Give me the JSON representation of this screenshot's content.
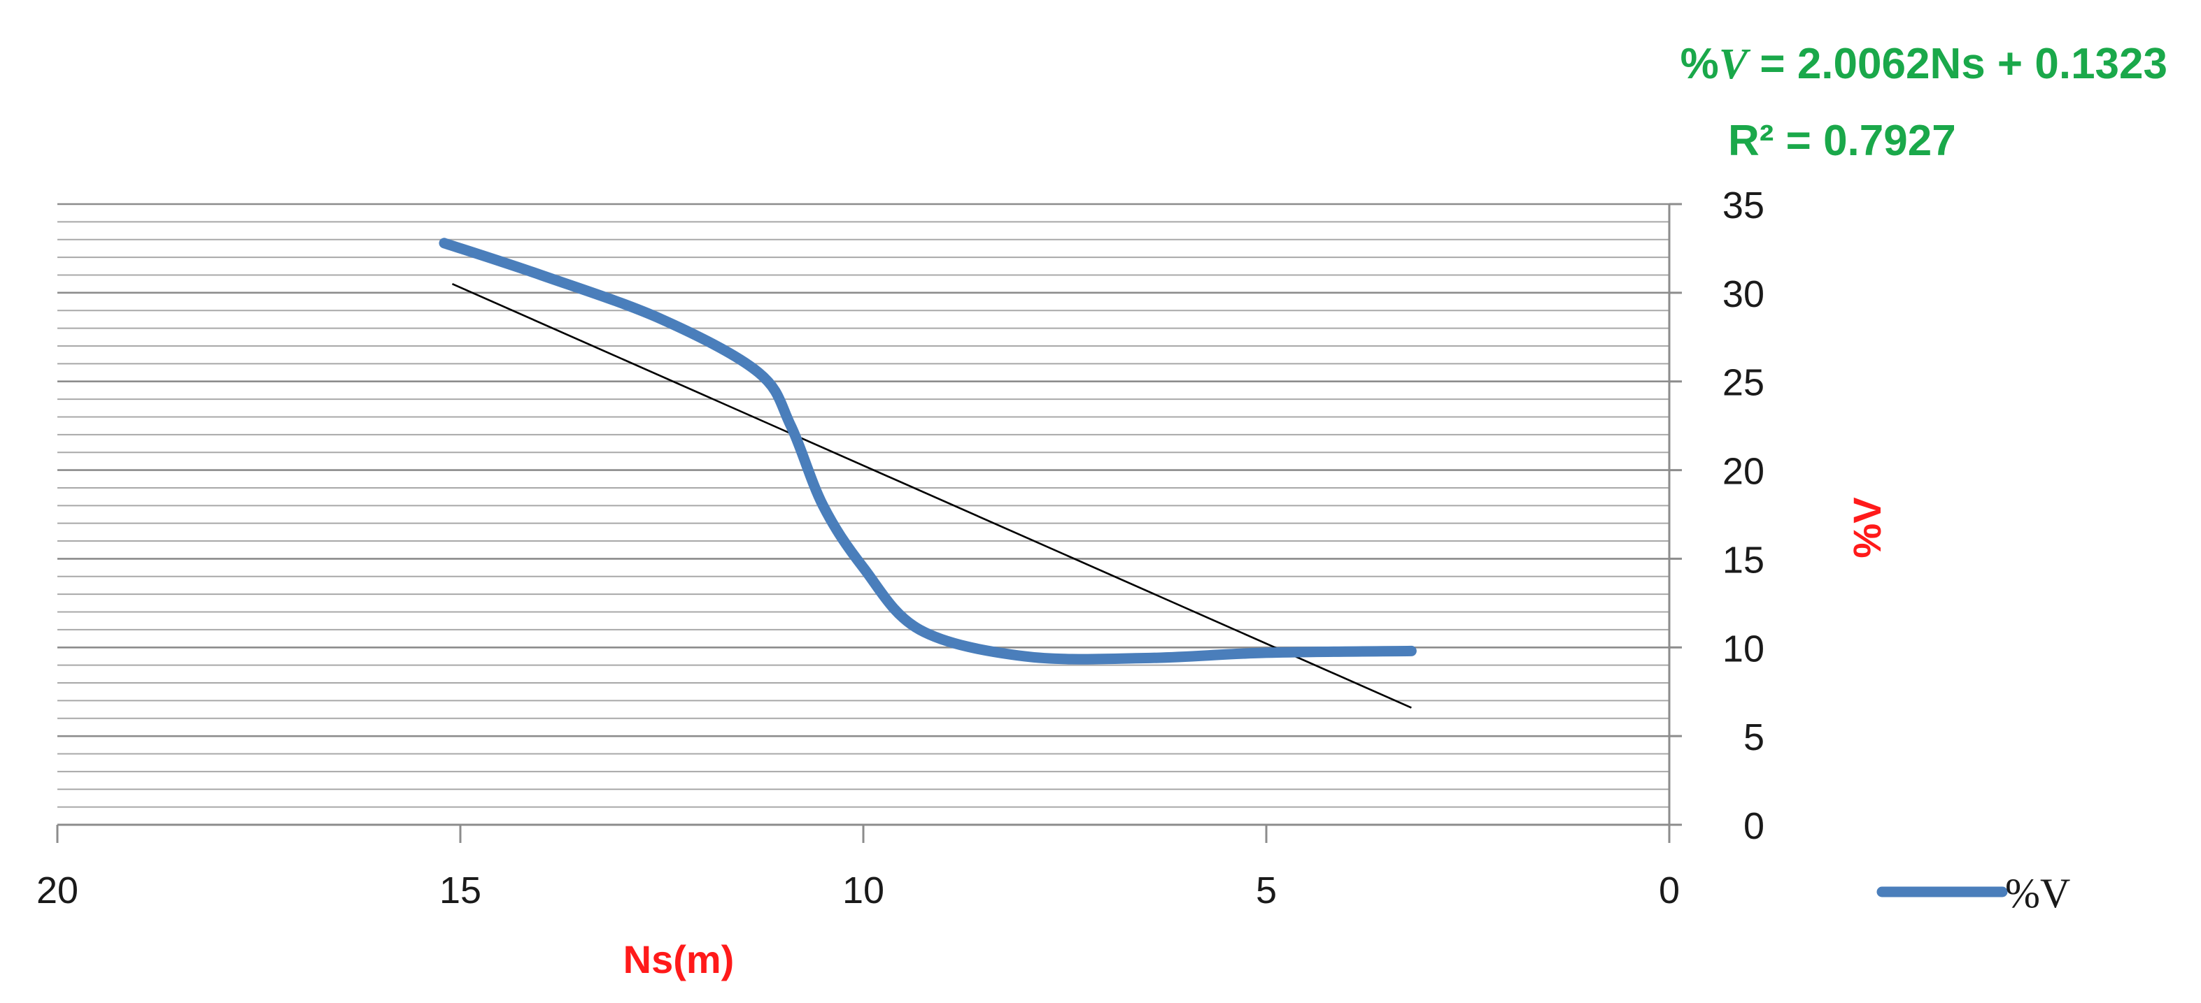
{
  "chart_data": {
    "type": "line",
    "title": "",
    "xlabel": "Ns(m)",
    "ylabel": "%V",
    "xlim": [
      20,
      0
    ],
    "ylim": [
      0,
      35
    ],
    "x_axis_reversed": true,
    "y_axis_position": "right",
    "x_ticks": [
      20,
      15,
      10,
      5,
      0
    ],
    "y_ticks": [
      0,
      5,
      10,
      15,
      20,
      25,
      30,
      35
    ],
    "y_minor_grid_step": 1,
    "grid": true,
    "legend": {
      "placement": "bottom-right"
    },
    "series": [
      {
        "name": "%V",
        "color": "#4a7ebb",
        "x": [
          15.2,
          14.0,
          12.5,
          11.3,
          10.9,
          10.5,
          10.0,
          9.3,
          8.0,
          6.5,
          5.0,
          3.2
        ],
        "y": [
          32.8,
          31.0,
          28.5,
          25.5,
          22.5,
          18.0,
          14.5,
          11.0,
          9.5,
          9.4,
          9.7,
          9.8
        ]
      }
    ],
    "trendline": {
      "color": "#000000",
      "x": [
        15.1,
        3.2
      ],
      "y": [
        30.5,
        6.6
      ]
    },
    "annotations": {
      "equation_prefix": "%",
      "equation_var": "V",
      "equation_body": " = 2.0062Ns  + 0.1323",
      "r_squared": "R² = 0.7927",
      "color": "#1aa84a"
    },
    "label_colors": {
      "axis_title": "#ff1a1a"
    }
  }
}
